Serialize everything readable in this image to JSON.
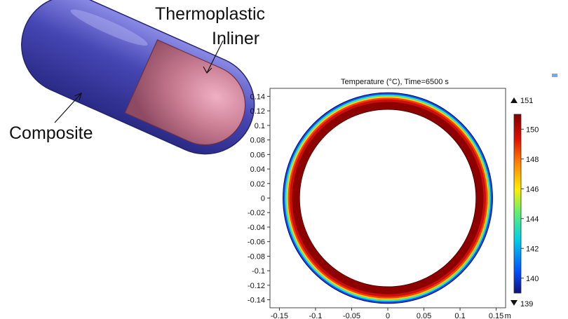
{
  "callouts": {
    "thermoplastic_line1": "Thermoplastic",
    "thermoplastic_line2": "Inliner",
    "composite": "Composite"
  },
  "plot": {
    "title": "Temperature (°C),  Time=6500 s",
    "x_ticks": [
      "-0.15",
      "-0.1",
      "-0.05",
      "0",
      "0.05",
      "0.1",
      "0.15"
    ],
    "x_ticks_values": [
      -0.15,
      -0.1,
      -0.05,
      0,
      0.05,
      0.1,
      0.15
    ],
    "x_unit": "m",
    "y_ticks": [
      "0.14",
      "0.12",
      "0.1",
      "0.08",
      "0.06",
      "0.04",
      "0.02",
      "0",
      "-0.02",
      "-0.04",
      "-0.06",
      "-0.08",
      "-0.1",
      "-0.12",
      "-0.14"
    ],
    "y_ticks_values": [
      0.14,
      0.12,
      0.1,
      0.08,
      0.06,
      0.04,
      0.02,
      0,
      -0.02,
      -0.04,
      -0.06,
      -0.08,
      -0.1,
      -0.12,
      -0.14
    ],
    "xlim": [
      -0.163,
      0.163
    ],
    "ylim": [
      -0.151,
      0.151
    ],
    "ring_inner_radius": 0.122,
    "ring_outer_radius": 0.145,
    "colorbar": {
      "max_label": "151",
      "min_label": "139",
      "ticks": [
        "150",
        "148",
        "146",
        "144",
        "142",
        "140"
      ],
      "tick_values": [
        150,
        148,
        146,
        144,
        142,
        140
      ],
      "range": [
        139,
        151
      ]
    },
    "colors": {
      "inner": "#8e0000",
      "hot": "#c81010",
      "warm": "#ff3a00",
      "mid": "#ffd200",
      "cool": "#2ee6c0",
      "cold": "#0a5cff",
      "coldest": "#1a0a8c"
    }
  },
  "vessel": {
    "composite_color": "#4a4ab8",
    "inliner_color": "#c77a90"
  }
}
